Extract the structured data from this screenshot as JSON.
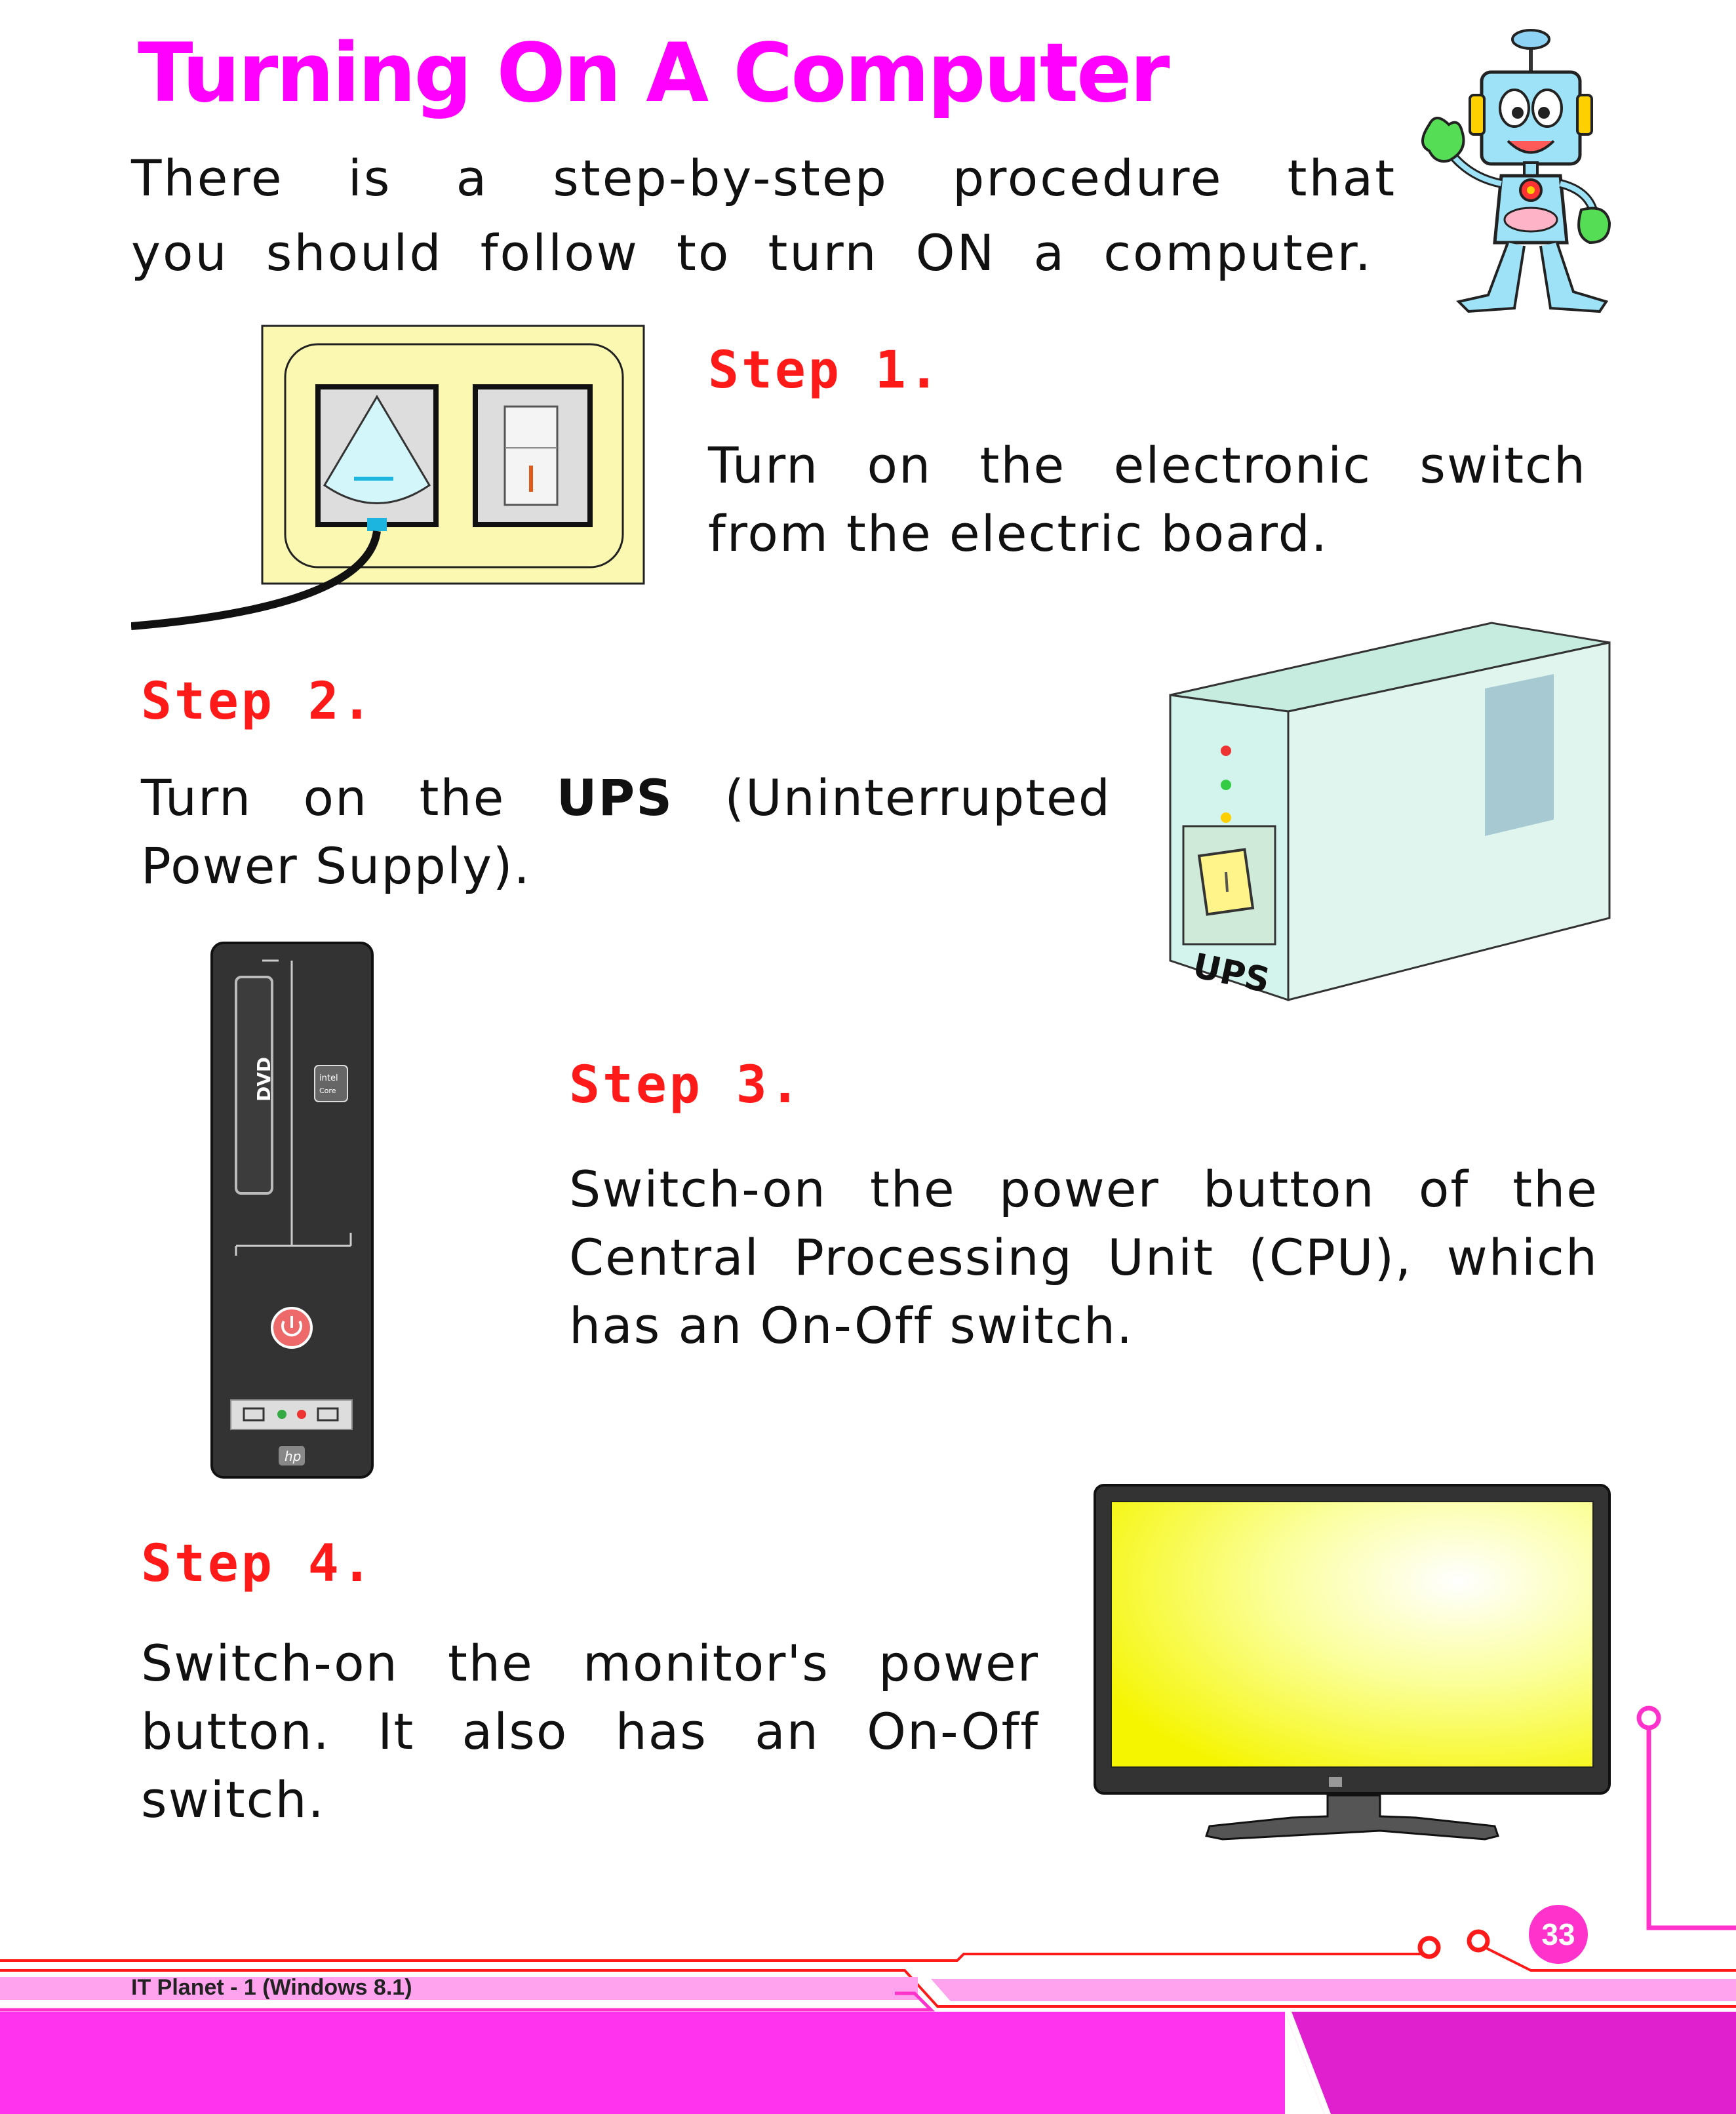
{
  "page": {
    "title": "Turning On A Computer",
    "intro": "There is a step-by-step procedure that you should follow to turn ON a computer.",
    "steps": [
      {
        "heading": "Step 1.",
        "text": "Turn on the electronic switch from the electric board."
      },
      {
        "heading": "Step 2.",
        "text_before": "Turn on the ",
        "bold": "UPS",
        "text_after": " (Uninterrupted Power Supply)."
      },
      {
        "heading": "Step 3.",
        "text": "Switch-on the power button of the Central Processing Unit (CPU), which has an On-Off switch."
      },
      {
        "heading": "Step 4.",
        "text": "Switch-on the monitor's power button. It also has an On-Off switch."
      }
    ],
    "ups_label": "UPS",
    "cpu_labels": {
      "dvd": "DVD",
      "intel": "intel",
      "core": "Core",
      "brand": "hp"
    },
    "footer": "IT Planet - 1 (Windows 8.1)",
    "page_number": "33"
  },
  "colors": {
    "title": "#ff00ff",
    "step_heading": "#ff1a1a",
    "accent": "#ff33cc",
    "footer_band": "#ff33ee"
  }
}
